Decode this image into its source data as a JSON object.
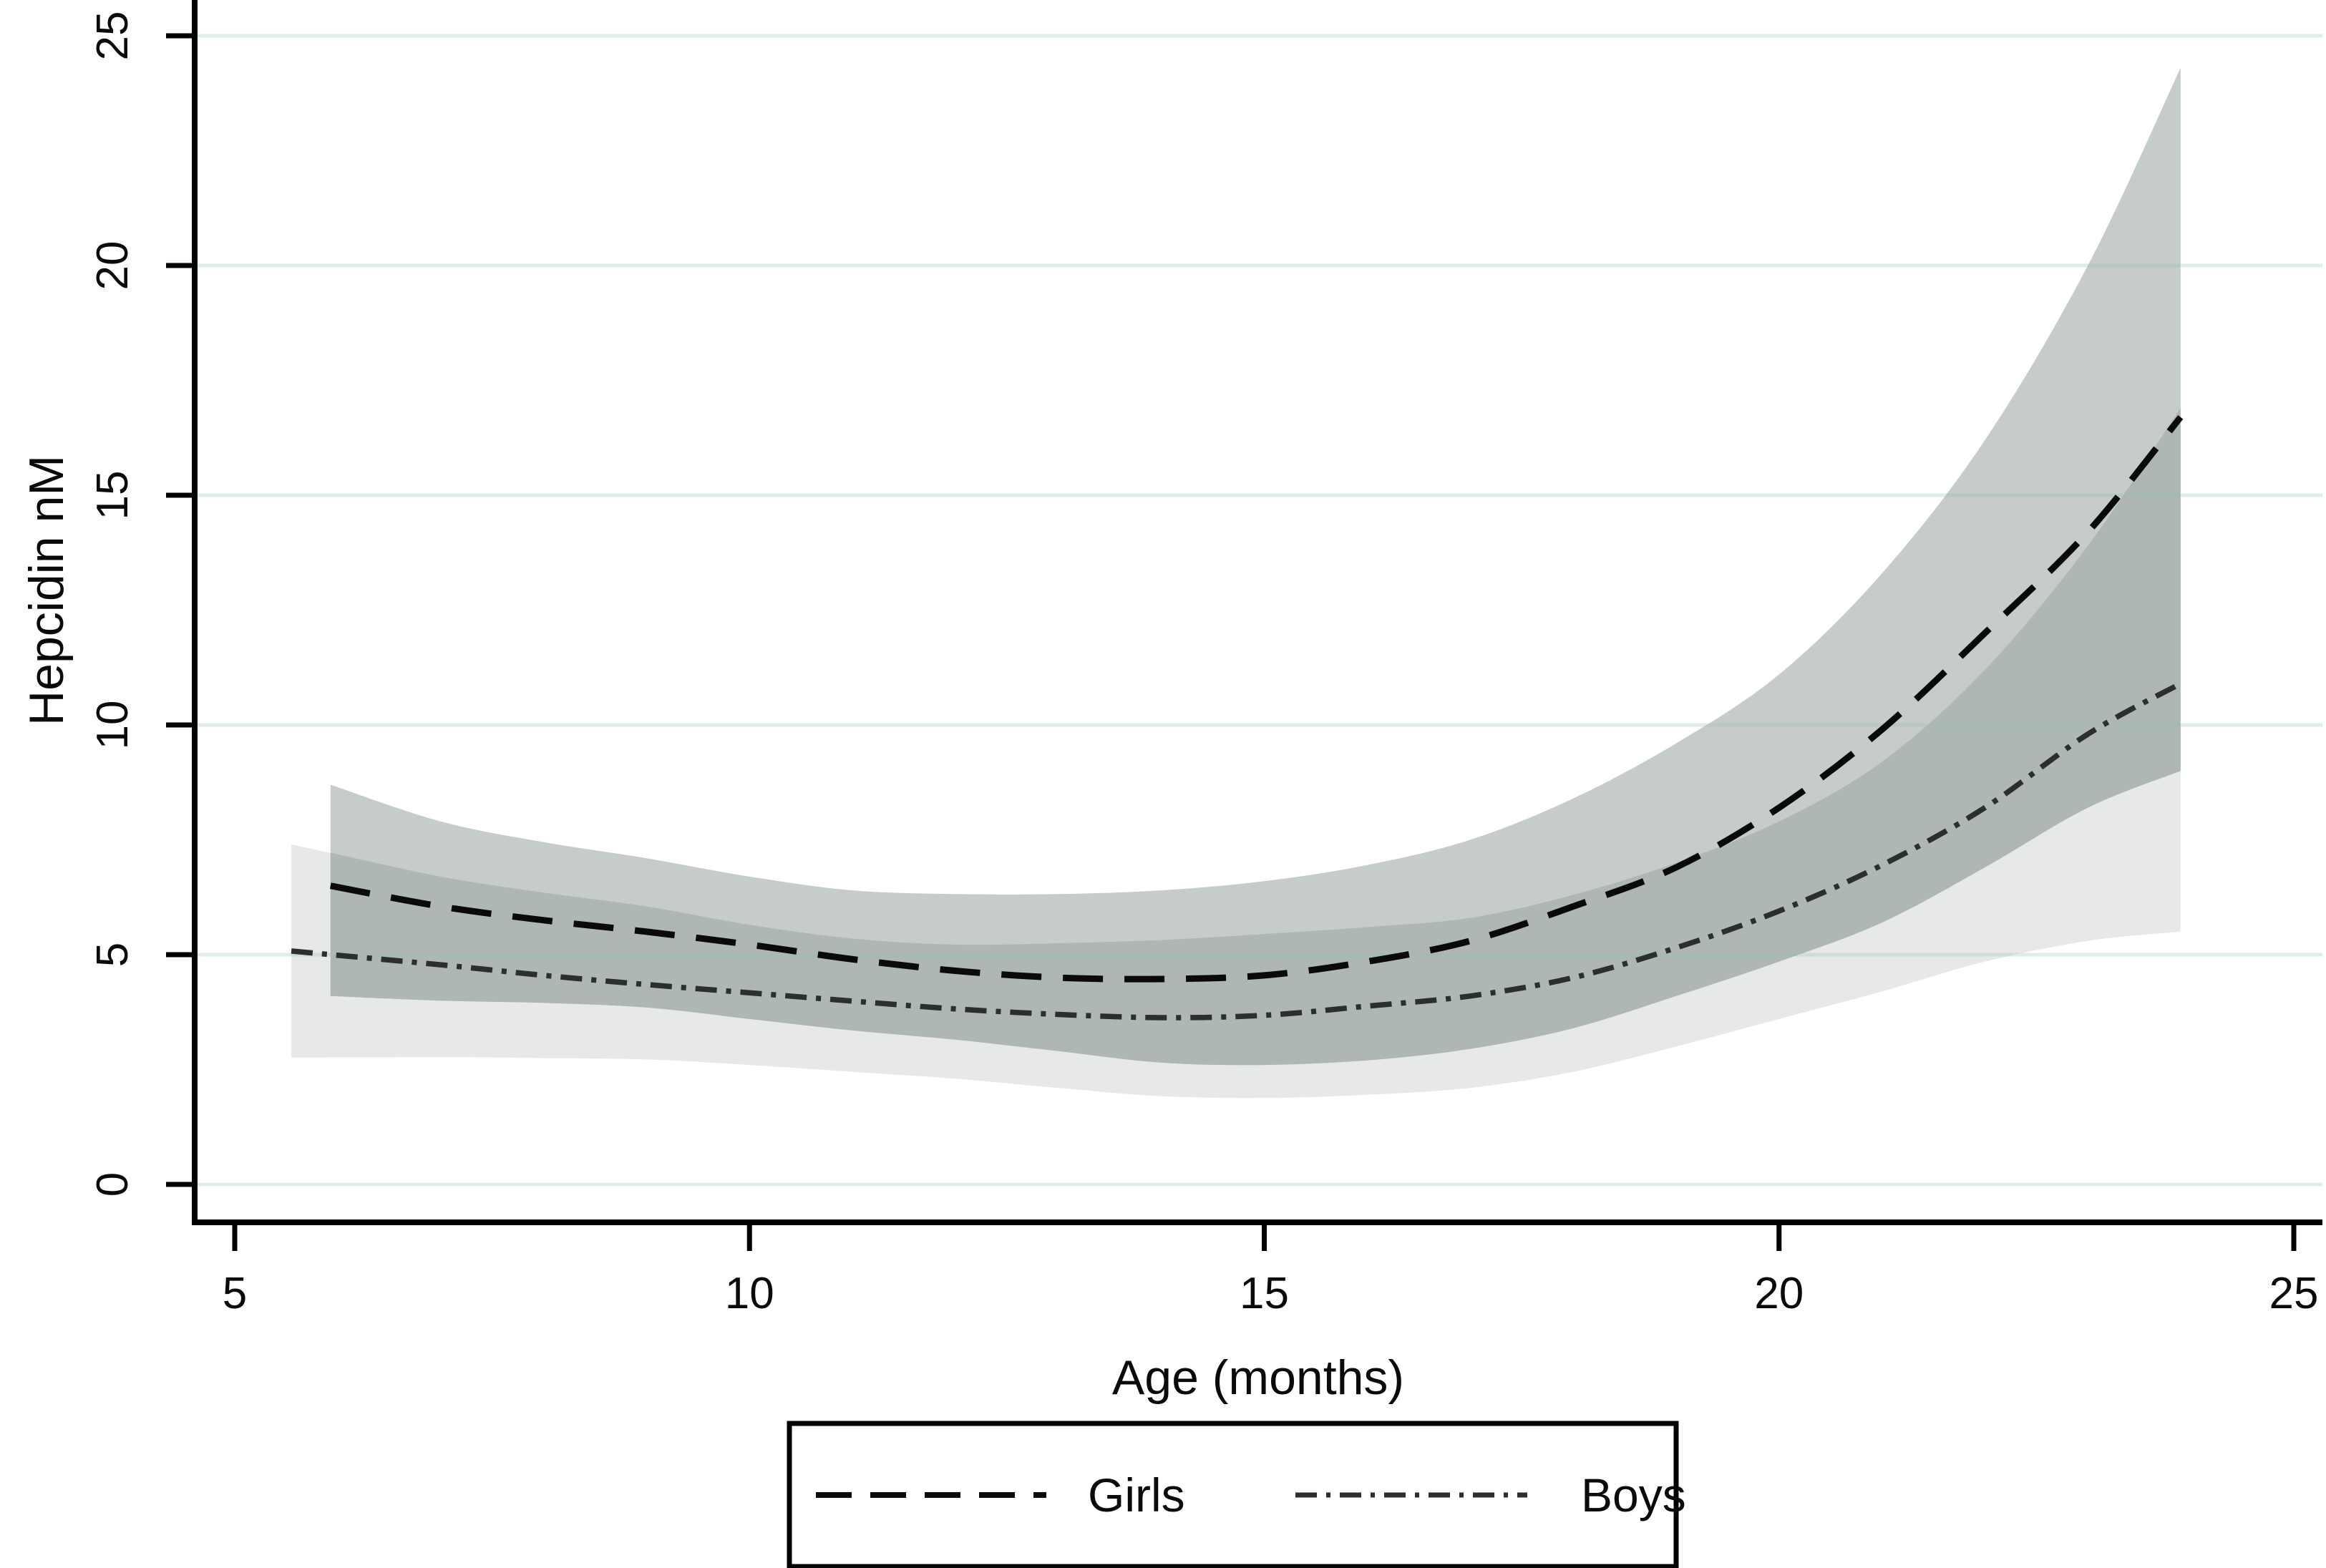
{
  "chart_data": {
    "type": "line",
    "title": "",
    "xlabel": "Age (months)",
    "ylabel": "Hepcidin nM",
    "xlim": [
      5,
      25
    ],
    "ylim": [
      0,
      25
    ],
    "x_ticks": [
      5,
      10,
      15,
      20,
      25
    ],
    "y_ticks": [
      0,
      5,
      10,
      15,
      20,
      25
    ],
    "grid": "horizontal",
    "legend_position": "bottom-center-boxed",
    "series": [
      {
        "name": "Girls",
        "line_style": "long-dash",
        "points": [
          [
            5.93,
            6.5
          ],
          [
            7,
            6.05
          ],
          [
            8,
            5.75
          ],
          [
            9,
            5.5
          ],
          [
            10,
            5.22
          ],
          [
            11,
            4.9
          ],
          [
            12,
            4.65
          ],
          [
            13,
            4.5
          ],
          [
            14,
            4.47
          ],
          [
            15,
            4.55
          ],
          [
            16,
            4.85
          ],
          [
            17,
            5.3
          ],
          [
            18,
            6.05
          ],
          [
            19,
            6.9
          ],
          [
            20,
            8.2
          ],
          [
            21,
            9.9
          ],
          [
            22,
            12.0
          ],
          [
            23,
            14.2
          ],
          [
            23.9,
            16.7
          ]
        ],
        "ci_top": [
          [
            5.93,
            8.7
          ],
          [
            7,
            7.9
          ],
          [
            8,
            7.45
          ],
          [
            9,
            7.1
          ],
          [
            10,
            6.7
          ],
          [
            11,
            6.4
          ],
          [
            12,
            6.32
          ],
          [
            13,
            6.32
          ],
          [
            14,
            6.4
          ],
          [
            15,
            6.6
          ],
          [
            16,
            6.95
          ],
          [
            17,
            7.5
          ],
          [
            18,
            8.4
          ],
          [
            19,
            9.6
          ],
          [
            20,
            11.1
          ],
          [
            21,
            13.3
          ],
          [
            22,
            16.2
          ],
          [
            23,
            20.0
          ],
          [
            23.9,
            24.3
          ]
        ],
        "ci_bottom": [
          [
            5.93,
            4.1
          ],
          [
            7,
            4.0
          ],
          [
            8,
            3.95
          ],
          [
            9,
            3.85
          ],
          [
            10,
            3.6
          ],
          [
            11,
            3.35
          ],
          [
            12,
            3.15
          ],
          [
            13,
            2.9
          ],
          [
            14,
            2.65
          ],
          [
            15,
            2.6
          ],
          [
            16,
            2.7
          ],
          [
            17,
            2.95
          ],
          [
            18,
            3.4
          ],
          [
            19,
            4.1
          ],
          [
            20,
            4.85
          ],
          [
            21,
            5.7
          ],
          [
            22,
            6.9
          ],
          [
            23,
            8.2
          ],
          [
            23.9,
            9.0
          ]
        ]
      },
      {
        "name": "Boys",
        "line_style": "dash-dot",
        "points": [
          [
            5.55,
            5.08
          ],
          [
            7,
            4.78
          ],
          [
            8,
            4.55
          ],
          [
            9,
            4.35
          ],
          [
            10,
            4.17
          ],
          [
            11,
            3.99
          ],
          [
            12,
            3.82
          ],
          [
            13,
            3.7
          ],
          [
            14,
            3.63
          ],
          [
            15,
            3.68
          ],
          [
            16,
            3.88
          ],
          [
            17,
            4.1
          ],
          [
            18,
            4.5
          ],
          [
            19,
            5.15
          ],
          [
            20,
            5.95
          ],
          [
            21,
            6.95
          ],
          [
            22,
            8.2
          ],
          [
            23,
            9.8
          ],
          [
            23.9,
            10.9
          ]
        ],
        "ci_top": [
          [
            5.55,
            7.4
          ],
          [
            7,
            6.7
          ],
          [
            8,
            6.35
          ],
          [
            9,
            6.05
          ],
          [
            10,
            5.65
          ],
          [
            11,
            5.35
          ],
          [
            12,
            5.22
          ],
          [
            13,
            5.25
          ],
          [
            14,
            5.32
          ],
          [
            15,
            5.45
          ],
          [
            16,
            5.6
          ],
          [
            17,
            5.8
          ],
          [
            18,
            6.3
          ],
          [
            19,
            7.0
          ],
          [
            20,
            7.9
          ],
          [
            21,
            9.2
          ],
          [
            22,
            11.2
          ],
          [
            23,
            13.9
          ],
          [
            23.9,
            16.9
          ]
        ],
        "ci_bottom": [
          [
            5.55,
            2.76
          ],
          [
            7,
            2.77
          ],
          [
            8,
            2.75
          ],
          [
            9,
            2.72
          ],
          [
            10,
            2.6
          ],
          [
            11,
            2.45
          ],
          [
            12,
            2.3
          ],
          [
            13,
            2.1
          ],
          [
            14,
            1.92
          ],
          [
            15,
            1.88
          ],
          [
            16,
            1.95
          ],
          [
            17,
            2.1
          ],
          [
            18,
            2.45
          ],
          [
            19,
            3.0
          ],
          [
            20,
            3.6
          ],
          [
            21,
            4.2
          ],
          [
            22,
            4.85
          ],
          [
            23,
            5.3
          ],
          [
            23.9,
            5.5
          ]
        ]
      }
    ],
    "overlap_top": [
      [
        5.93,
        7.22
      ],
      [
        7,
        6.7
      ],
      [
        8,
        6.35
      ],
      [
        9,
        6.05
      ],
      [
        10,
        5.65
      ],
      [
        11,
        5.35
      ],
      [
        12,
        5.22
      ],
      [
        13,
        5.25
      ],
      [
        14,
        5.32
      ],
      [
        15,
        5.45
      ],
      [
        16,
        5.6
      ],
      [
        17,
        5.8
      ],
      [
        18,
        6.3
      ],
      [
        19,
        7.0
      ],
      [
        20,
        7.9
      ],
      [
        21,
        9.2
      ],
      [
        22,
        11.2
      ],
      [
        23,
        13.9
      ],
      [
        23.9,
        16.9
      ]
    ]
  },
  "legend": {
    "girls_label": "Girls",
    "boys_label": "Boys"
  },
  "colors": {
    "girls_band": "#c5ccc9",
    "boys_band": "#e7e9e8",
    "overlap_band": "#aeb7b4",
    "girls_line": "#0a0a0a",
    "boys_line": "#2b2f2e",
    "gridline": "rgba(150,195,175,0.30)",
    "axis": "#000000",
    "background": "#ffffff"
  }
}
